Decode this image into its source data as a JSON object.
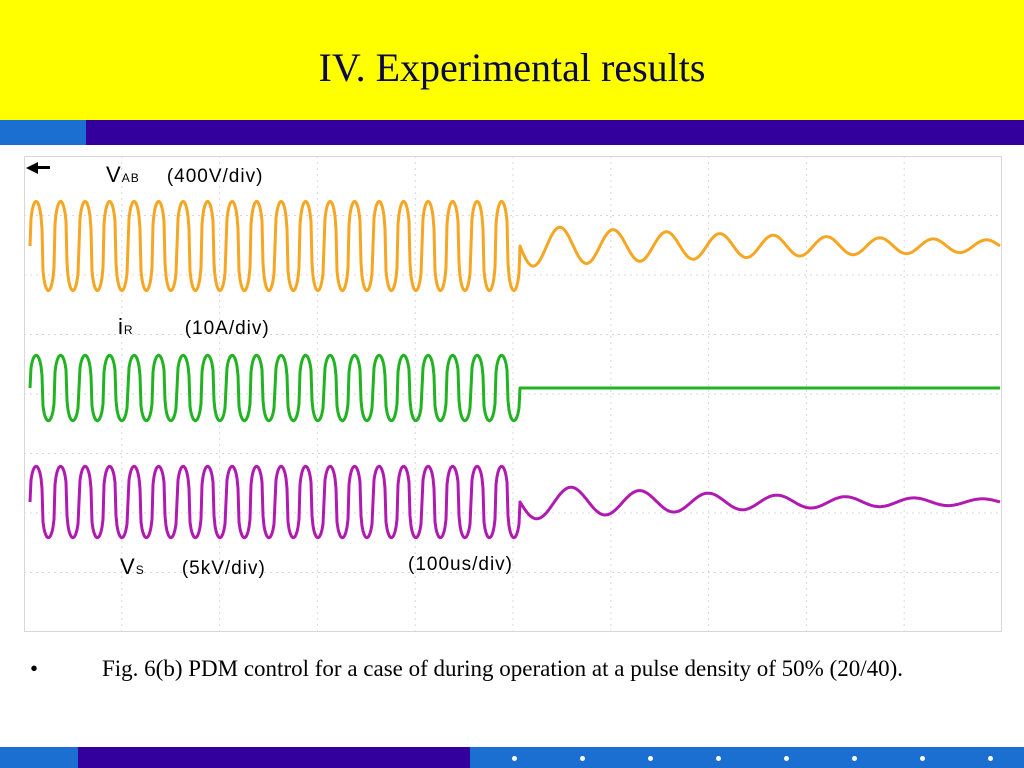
{
  "slide": {
    "title": "IV. Experimental results",
    "caption_bullet": "•",
    "caption": "Fig. 6(b)  PDM control for a case of during operation at a pulse density of 50% (20/40)."
  },
  "colors": {
    "title_bg": "#ffff00",
    "title_text": "#0a0a4a",
    "band_blue": "#1a6fd1",
    "band_purple": "#33009e",
    "grid": "#d8d8d8",
    "v_ab": "#f5a623",
    "i_r": "#22b322",
    "v_s": "#b01ab0"
  },
  "chart_data": {
    "type": "line",
    "subtype": "oscilloscope",
    "grid": true,
    "timebase": "(100us/div)",
    "channels": [
      {
        "symbol": "V",
        "subscript": "AB",
        "scale": "(400V/div)",
        "color": "#f5a623",
        "driven_periods": 20,
        "free_periods": 9,
        "driven_amplitude_div": 0.75,
        "decay_start_amplitude_div": 0.35,
        "decay_end_amplitude_div": 0.1
      },
      {
        "symbol": "i",
        "subscript": "R",
        "scale": "(10A/div)",
        "color": "#22b322",
        "driven_periods": 20,
        "free_periods": 0,
        "driven_amplitude_div": 0.55,
        "decay_start_amplitude_div": 0,
        "decay_end_amplitude_div": 0
      },
      {
        "symbol": "V",
        "subscript": "S",
        "scale": "(5kV/div)",
        "color": "#b01ab0",
        "driven_periods": 20,
        "free_periods": 7,
        "driven_amplitude_div": 0.6,
        "decay_start_amplitude_div": 0.3,
        "decay_end_amplitude_div": 0.05
      }
    ]
  }
}
